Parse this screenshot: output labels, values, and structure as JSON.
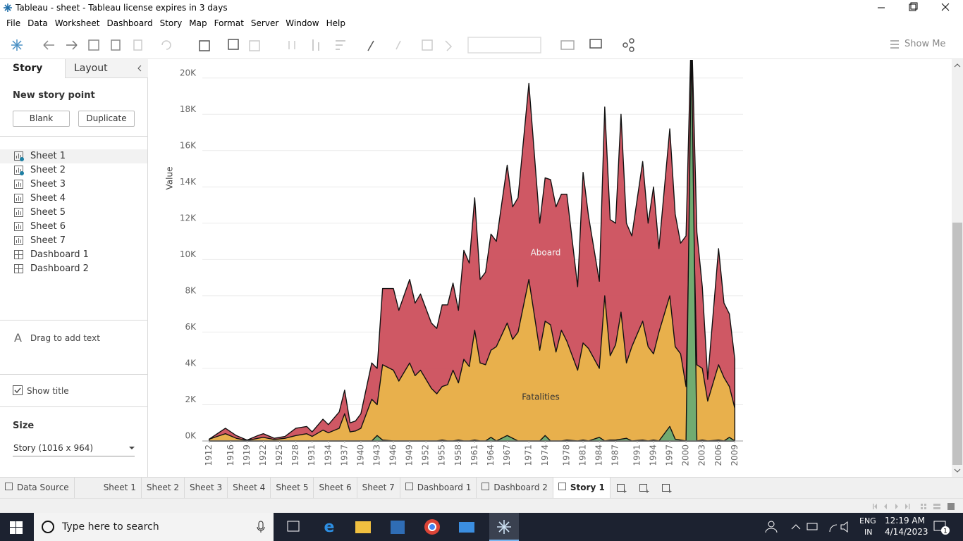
{
  "window_title": "Tableau - sheet - Tableau license expires in 3 days",
  "menu": [
    "File",
    "Data",
    "Worksheet",
    "Dashboard",
    "Story",
    "Map",
    "Format",
    "Server",
    "Window",
    "Help"
  ],
  "toolbar": {
    "show_me": "Show Me"
  },
  "side_panel": {
    "tabs": [
      "Story",
      "Layout"
    ],
    "new_story_point": "New story point",
    "buttons": [
      "Blank",
      "Duplicate"
    ],
    "sheets": [
      "Sheet 1",
      "Sheet 2",
      "Sheet 3",
      "Sheet 4",
      "Sheet 5",
      "Sheet 6",
      "Sheet 7",
      "Dashboard 1",
      "Dashboard 2"
    ],
    "drag_text": "Drag to add text",
    "show_title": "Show title",
    "size_heading": "Size",
    "size_value": "Story (1016 x 964)"
  },
  "chart_data": {
    "type": "area",
    "y_label": "Value",
    "x": [
      1912,
      1914,
      1915,
      1917,
      1919,
      1921,
      1922,
      1924,
      1926,
      1928,
      1930,
      1931,
      1933,
      1934,
      1936,
      1937,
      1938,
      1939,
      1940,
      1942,
      1943,
      1944,
      1946,
      1947,
      1949,
      1950,
      1951,
      1953,
      1954,
      1955,
      1956,
      1957,
      1958,
      1959,
      1960,
      1961,
      1962,
      1963,
      1964,
      1965,
      1967,
      1968,
      1969,
      1971,
      1973,
      1974,
      1975,
      1976,
      1977,
      1978,
      1980,
      1981,
      1982,
      1984,
      1985,
      1986,
      1987,
      1988,
      1989,
      1990,
      1992,
      1993,
      1994,
      1995,
      1997,
      1998,
      1999,
      2000,
      2001,
      2002,
      2003,
      2004,
      2006,
      2007,
      2008,
      2009
    ],
    "series": [
      {
        "name": "Aboard",
        "color": "#cc4f5c",
        "label_color": "#f4f4f4",
        "values": [
          100,
          500,
          700,
          300,
          50,
          300,
          400,
          150,
          250,
          700,
          800,
          500,
          1200,
          900,
          1600,
          2800,
          1000,
          1100,
          1500,
          4300,
          4000,
          8400,
          8400,
          7200,
          8900,
          7600,
          8100,
          6500,
          6200,
          7500,
          7500,
          8700,
          7200,
          10500,
          9800,
          13400,
          8900,
          9300,
          11400,
          11000,
          15200,
          12900,
          13400,
          19700,
          12000,
          14500,
          14400,
          12900,
          13600,
          13600,
          8500,
          14800,
          12400,
          8800,
          18400,
          12200,
          12000,
          18000,
          12000,
          11300,
          15400,
          12000,
          14000,
          10600,
          17200,
          12500,
          10900,
          11300,
          23000,
          11500,
          8500,
          3400,
          10600,
          7600,
          7000,
          4500
        ]
      },
      {
        "name": "Fatalities",
        "color": "#e9b54b",
        "label_color": "#333333",
        "values": [
          100,
          300,
          400,
          150,
          20,
          150,
          200,
          80,
          150,
          300,
          400,
          250,
          600,
          450,
          700,
          1500,
          500,
          550,
          700,
          2300,
          2000,
          4200,
          3900,
          3300,
          4300,
          3600,
          3900,
          2900,
          2600,
          3000,
          3100,
          3900,
          3200,
          4500,
          4100,
          6100,
          4300,
          4200,
          5000,
          5200,
          6500,
          5600,
          6000,
          8900,
          5000,
          6600,
          6400,
          4900,
          6100,
          5500,
          3900,
          5400,
          5100,
          4000,
          8000,
          4700,
          5300,
          7100,
          4300,
          5200,
          6600,
          5200,
          4800,
          6000,
          8000,
          5200,
          4800,
          3000,
          17000,
          4200,
          4000,
          2200,
          4200,
          3500,
          3000,
          1800
        ]
      },
      {
        "color": "#6aab73",
        "values": [
          0,
          0,
          0,
          0,
          0,
          0,
          0,
          0,
          0,
          0,
          0,
          0,
          0,
          0,
          0,
          0,
          0,
          0,
          0,
          0,
          300,
          50,
          0,
          0,
          0,
          0,
          0,
          0,
          0,
          50,
          0,
          0,
          50,
          0,
          0,
          50,
          0,
          0,
          200,
          0,
          300,
          150,
          0,
          0,
          0,
          300,
          0,
          0,
          0,
          50,
          0,
          50,
          0,
          200,
          0,
          50,
          50,
          100,
          150,
          0,
          50,
          0,
          50,
          0,
          800,
          100,
          50,
          0,
          22000,
          0,
          50,
          0,
          50,
          0,
          200,
          0
        ]
      }
    ],
    "xlim": [
      1911,
      2010
    ],
    "xticks": [
      1912,
      1916,
      1919,
      1922,
      1925,
      1928,
      1931,
      1934,
      1937,
      1940,
      1943,
      1946,
      1949,
      1952,
      1955,
      1958,
      1961,
      1964,
      1967,
      1971,
      1974,
      1978,
      1981,
      1984,
      1987,
      1991,
      1994,
      1997,
      2000,
      2003,
      2006,
      2009
    ],
    "ylim": [
      0,
      21000
    ],
    "yticks": [
      {
        "value": 0,
        "label": "0K"
      },
      {
        "value": 2000,
        "label": "2K"
      },
      {
        "value": 4000,
        "label": "4K"
      },
      {
        "value": 6000,
        "label": "6K"
      },
      {
        "value": 8000,
        "label": "8K"
      },
      {
        "value": 10000,
        "label": "10K"
      },
      {
        "value": 12000,
        "label": "12K"
      },
      {
        "value": 14000,
        "label": "14K"
      },
      {
        "value": 16000,
        "label": "16K"
      },
      {
        "value": 18000,
        "label": "18K"
      },
      {
        "value": 20000,
        "label": "20K"
      }
    ],
    "grid": true
  },
  "tabs": [
    "Data Source",
    "Sheet 1",
    "Sheet 2",
    "Sheet 3",
    "Sheet 4",
    "Sheet 5",
    "Sheet 6",
    "Sheet 7",
    "Dashboard 1",
    "Dashboard 2",
    "Story 1"
  ],
  "taskbar": {
    "search": "Type here to search",
    "language": "ENG",
    "region": "IN",
    "time": "12:19 AM",
    "date": "4/14/2023"
  }
}
